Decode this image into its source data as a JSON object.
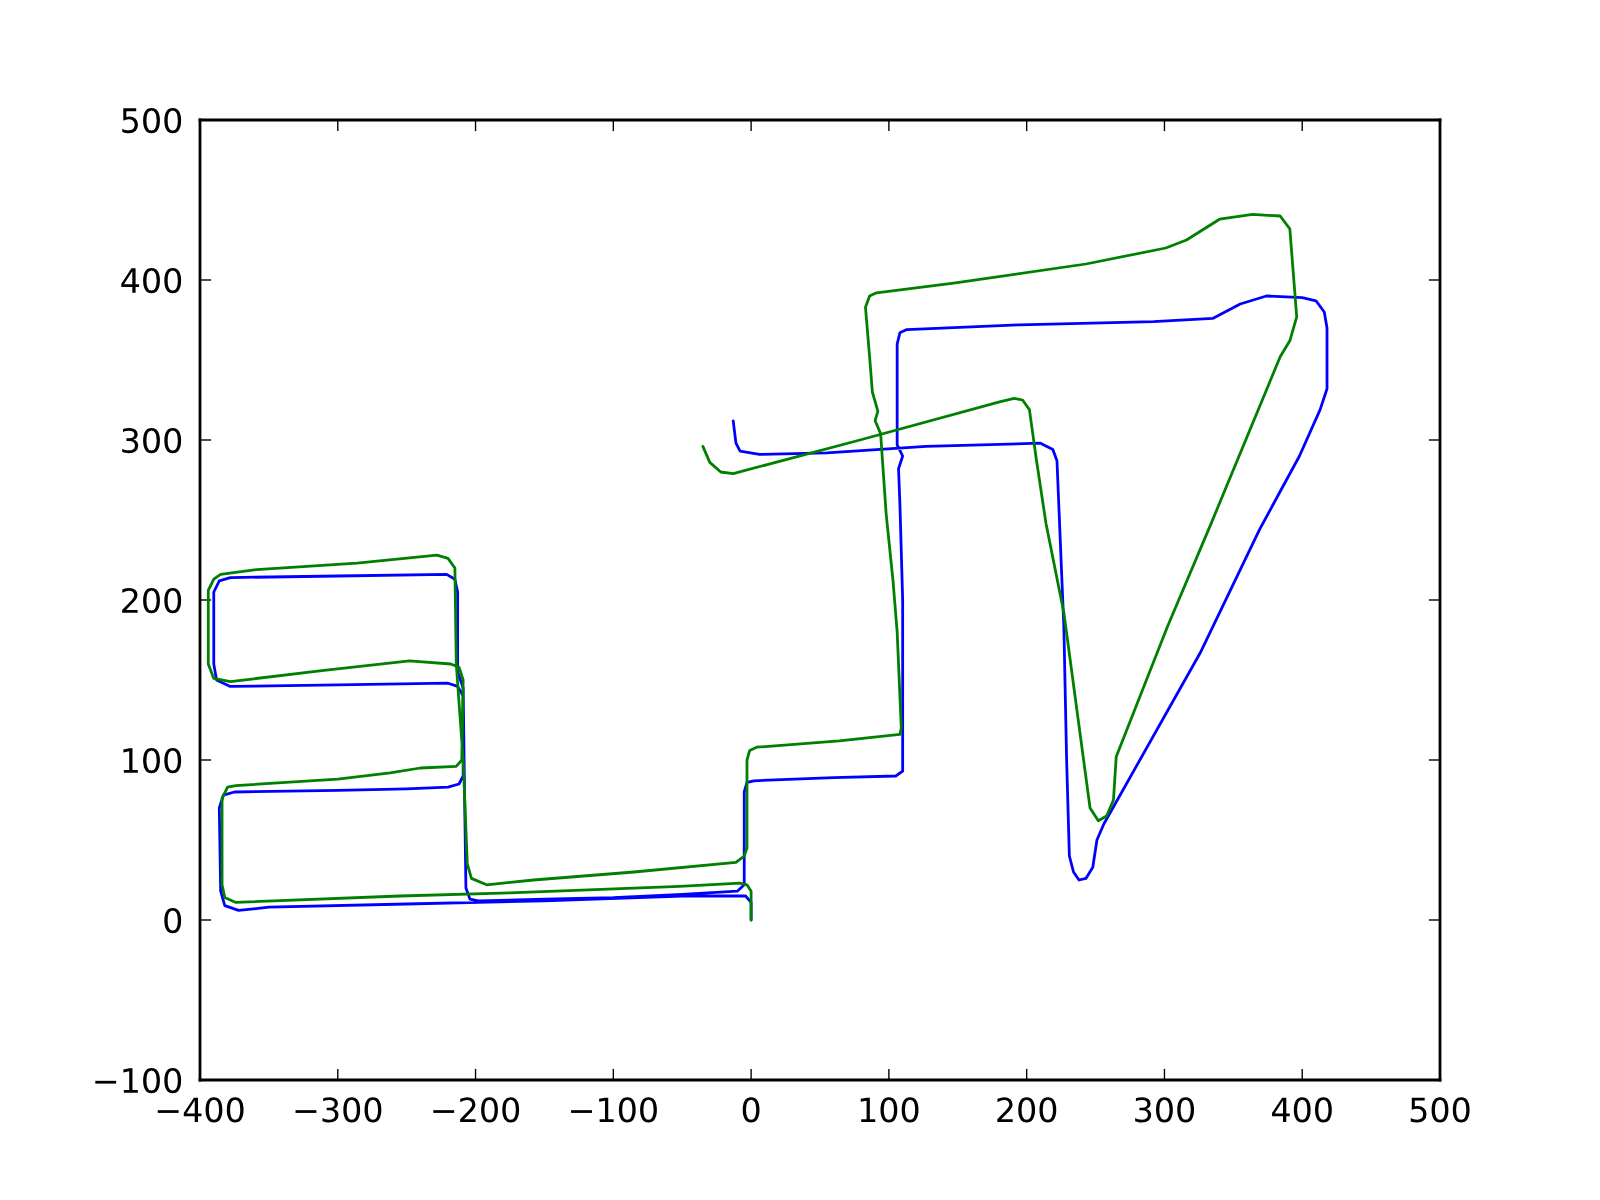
{
  "chart_data": {
    "type": "line",
    "xlim": [
      -400,
      500
    ],
    "ylim": [
      -100,
      500
    ],
    "xticks": [
      {
        "value": -400,
        "label": "−400"
      },
      {
        "value": -300,
        "label": "−300"
      },
      {
        "value": -200,
        "label": "−200"
      },
      {
        "value": -100,
        "label": "−100"
      },
      0,
      100,
      200,
      300,
      400,
      500
    ],
    "yticks": [
      {
        "value": -100,
        "label": "−100"
      },
      0,
      100,
      200,
      300,
      400,
      500
    ],
    "series": [
      {
        "color": "#0000ff",
        "x": [
          0,
          0,
          -4,
          -50,
          -150,
          -250,
          -350,
          -372,
          -382,
          -385,
          -386,
          -383,
          -375,
          -300,
          -250,
          -220,
          -212,
          -209,
          -209,
          -213,
          -220,
          -300,
          -378,
          -388,
          -390,
          -390,
          -386,
          -378,
          -300,
          -221,
          -215,
          -213,
          -213,
          -209,
          -208,
          -207,
          -204,
          -198,
          -150,
          -100,
          -50,
          -10,
          -5,
          -5,
          -3,
          2,
          60,
          105,
          110,
          110,
          108,
          107,
          110,
          106,
          106,
          106,
          108,
          113,
          195,
          292,
          335,
          355,
          374,
          400,
          410,
          416,
          418,
          418,
          413,
          398,
          369,
          326,
          256,
          251,
          248,
          243,
          238,
          234,
          231,
          229,
          227,
          222,
          219,
          210,
          127,
          55,
          6,
          -8,
          -11,
          -13
        ],
        "values": [
          0,
          11,
          15,
          15,
          12,
          10,
          8,
          6,
          9,
          18,
          70,
          78,
          80,
          81,
          82,
          83,
          85,
          90,
          140,
          146,
          148,
          147,
          146,
          150,
          160,
          205,
          212,
          214,
          215,
          216,
          213,
          205,
          155,
          145,
          80,
          20,
          13,
          12,
          13,
          14,
          16,
          18,
          22,
          80,
          86,
          87,
          89,
          90,
          93,
          200,
          260,
          282,
          290,
          297,
          330,
          360,
          367,
          369,
          372,
          374,
          376,
          385,
          390,
          389,
          387,
          380,
          370,
          332,
          319,
          290,
          244,
          167,
          60,
          50,
          33,
          26,
          25,
          30,
          40,
          100,
          183,
          287,
          294,
          298,
          296,
          292,
          291,
          293,
          298,
          312
        ]
      },
      {
        "color": "#008000",
        "x": [
          0,
          0,
          -3,
          -8,
          -52,
          -175,
          -255,
          -374,
          -382,
          -384,
          -384,
          -380,
          -374,
          -300,
          -262,
          -240,
          -214,
          -210,
          -209,
          -212,
          -218,
          -248,
          -310,
          -378,
          -390,
          -394,
          -394,
          -390,
          -385,
          -359,
          -286,
          -228,
          -220,
          -215,
          -214,
          -209,
          -206,
          -203,
          -192,
          -158,
          -85,
          -11,
          -5,
          -3,
          -3,
          -1,
          4,
          64,
          108,
          109,
          106,
          103,
          98,
          94,
          90,
          92,
          88,
          86,
          83,
          86,
          91,
          147,
          243,
          301,
          316,
          340,
          364,
          384,
          391,
          396,
          391,
          384,
          333,
          302,
          265,
          263,
          258,
          252,
          246,
          227,
          214,
          207,
          202,
          197,
          191,
          181,
          79,
          -13,
          -22,
          -30,
          -35
        ],
        "values": [
          0,
          18,
          22,
          23,
          21,
          17,
          15,
          11,
          14,
          22,
          76,
          83,
          84,
          88,
          92,
          95,
          96,
          100,
          150,
          158,
          160,
          162,
          156,
          149,
          151,
          160,
          206,
          213,
          216,
          219,
          223,
          228,
          226,
          220,
          160,
          100,
          35,
          26,
          22,
          25,
          30,
          36,
          40,
          45,
          100,
          106,
          108,
          112,
          116,
          120,
          180,
          212,
          254,
          304,
          312,
          318,
          330,
          352,
          383,
          390,
          392,
          398,
          410,
          420,
          425,
          438,
          441,
          440,
          432,
          377,
          362,
          352,
          246,
          183,
          102,
          75,
          65,
          62,
          70,
          192,
          248,
          288,
          319,
          325,
          326,
          324,
          300,
          279,
          280,
          286,
          296
        ]
      }
    ]
  }
}
